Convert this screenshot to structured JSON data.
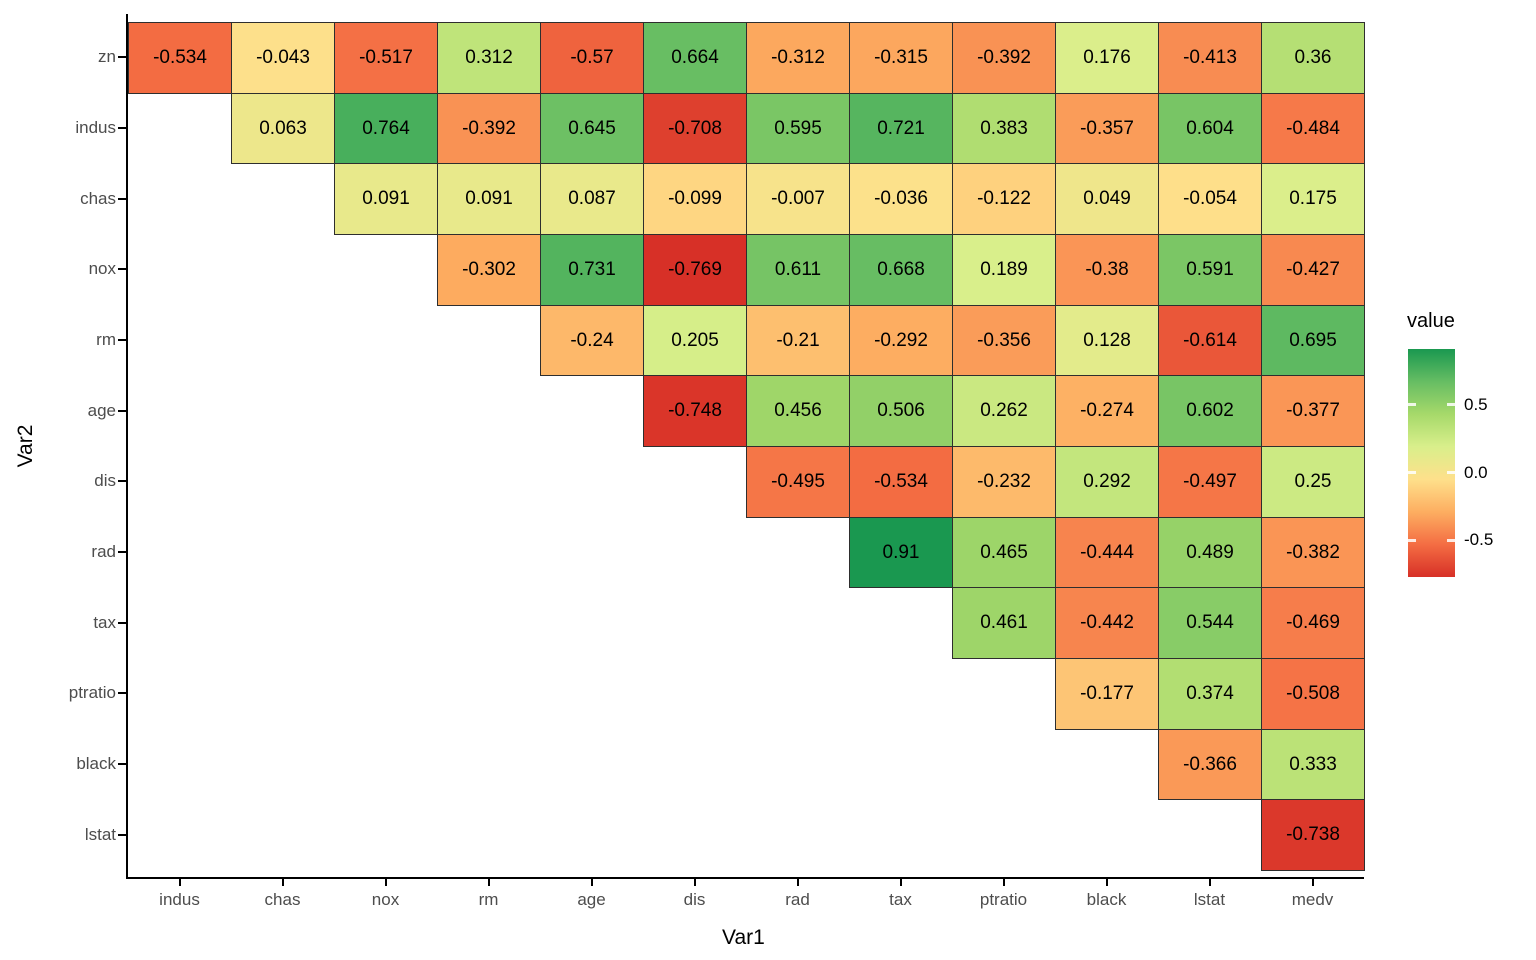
{
  "chart_data": {
    "type": "heatmap",
    "title": "",
    "xlabel": "Var1",
    "ylabel": "Var2",
    "x_categories": [
      "indus",
      "chas",
      "nox",
      "rm",
      "age",
      "dis",
      "rad",
      "tax",
      "ptratio",
      "black",
      "lstat",
      "medv"
    ],
    "y_categories": [
      "zn",
      "indus",
      "chas",
      "nox",
      "rm",
      "age",
      "dis",
      "rad",
      "tax",
      "ptratio",
      "black",
      "lstat"
    ],
    "rows": [
      {
        "y": "zn",
        "cells": [
          {
            "x": "indus",
            "v": -0.534
          },
          {
            "x": "chas",
            "v": -0.043
          },
          {
            "x": "nox",
            "v": -0.517
          },
          {
            "x": "rm",
            "v": 0.312
          },
          {
            "x": "age",
            "v": -0.57
          },
          {
            "x": "dis",
            "v": 0.664
          },
          {
            "x": "rad",
            "v": -0.312
          },
          {
            "x": "tax",
            "v": -0.315
          },
          {
            "x": "ptratio",
            "v": -0.392
          },
          {
            "x": "black",
            "v": 0.176
          },
          {
            "x": "lstat",
            "v": -0.413
          },
          {
            "x": "medv",
            "v": 0.36
          }
        ]
      },
      {
        "y": "indus",
        "cells": [
          {
            "x": "chas",
            "v": 0.063
          },
          {
            "x": "nox",
            "v": 0.764
          },
          {
            "x": "rm",
            "v": -0.392
          },
          {
            "x": "age",
            "v": 0.645
          },
          {
            "x": "dis",
            "v": -0.708
          },
          {
            "x": "rad",
            "v": 0.595
          },
          {
            "x": "tax",
            "v": 0.721
          },
          {
            "x": "ptratio",
            "v": 0.383
          },
          {
            "x": "black",
            "v": -0.357
          },
          {
            "x": "lstat",
            "v": 0.604
          },
          {
            "x": "medv",
            "v": -0.484
          }
        ]
      },
      {
        "y": "chas",
        "cells": [
          {
            "x": "nox",
            "v": 0.091
          },
          {
            "x": "rm",
            "v": 0.091
          },
          {
            "x": "age",
            "v": 0.087
          },
          {
            "x": "dis",
            "v": -0.099
          },
          {
            "x": "rad",
            "v": -0.007
          },
          {
            "x": "tax",
            "v": -0.036
          },
          {
            "x": "ptratio",
            "v": -0.122
          },
          {
            "x": "black",
            "v": 0.049
          },
          {
            "x": "lstat",
            "v": -0.054
          },
          {
            "x": "medv",
            "v": 0.175
          }
        ]
      },
      {
        "y": "nox",
        "cells": [
          {
            "x": "rm",
            "v": -0.302
          },
          {
            "x": "age",
            "v": 0.731
          },
          {
            "x": "dis",
            "v": -0.769
          },
          {
            "x": "rad",
            "v": 0.611
          },
          {
            "x": "tax",
            "v": 0.668
          },
          {
            "x": "ptratio",
            "v": 0.189
          },
          {
            "x": "black",
            "v": -0.38
          },
          {
            "x": "lstat",
            "v": 0.591
          },
          {
            "x": "medv",
            "v": -0.427
          }
        ]
      },
      {
        "y": "rm",
        "cells": [
          {
            "x": "age",
            "v": -0.24
          },
          {
            "x": "dis",
            "v": 0.205
          },
          {
            "x": "rad",
            "v": -0.21
          },
          {
            "x": "tax",
            "v": -0.292
          },
          {
            "x": "ptratio",
            "v": -0.356
          },
          {
            "x": "black",
            "v": 0.128
          },
          {
            "x": "lstat",
            "v": -0.614
          },
          {
            "x": "medv",
            "v": 0.695
          }
        ]
      },
      {
        "y": "age",
        "cells": [
          {
            "x": "dis",
            "v": -0.748
          },
          {
            "x": "rad",
            "v": 0.456
          },
          {
            "x": "tax",
            "v": 0.506
          },
          {
            "x": "ptratio",
            "v": 0.262
          },
          {
            "x": "black",
            "v": -0.274
          },
          {
            "x": "lstat",
            "v": 0.602
          },
          {
            "x": "medv",
            "v": -0.377
          }
        ]
      },
      {
        "y": "dis",
        "cells": [
          {
            "x": "rad",
            "v": -0.495
          },
          {
            "x": "tax",
            "v": -0.534
          },
          {
            "x": "ptratio",
            "v": -0.232
          },
          {
            "x": "black",
            "v": 0.292
          },
          {
            "x": "lstat",
            "v": -0.497
          },
          {
            "x": "medv",
            "v": 0.25
          }
        ]
      },
      {
        "y": "rad",
        "cells": [
          {
            "x": "tax",
            "v": 0.91
          },
          {
            "x": "ptratio",
            "v": 0.465
          },
          {
            "x": "black",
            "v": -0.444
          },
          {
            "x": "lstat",
            "v": 0.489
          },
          {
            "x": "medv",
            "v": -0.382
          }
        ]
      },
      {
        "y": "tax",
        "cells": [
          {
            "x": "ptratio",
            "v": 0.461
          },
          {
            "x": "black",
            "v": -0.442
          },
          {
            "x": "lstat",
            "v": 0.544
          },
          {
            "x": "medv",
            "v": -0.469
          }
        ]
      },
      {
        "y": "ptratio",
        "cells": [
          {
            "x": "black",
            "v": -0.177
          },
          {
            "x": "lstat",
            "v": 0.374
          },
          {
            "x": "medv",
            "v": -0.508
          }
        ]
      },
      {
        "y": "black",
        "cells": [
          {
            "x": "lstat",
            "v": -0.366
          },
          {
            "x": "medv",
            "v": 0.333
          }
        ]
      },
      {
        "y": "lstat",
        "cells": [
          {
            "x": "medv",
            "v": -0.738
          }
        ]
      }
    ],
    "legend": {
      "title": "value",
      "ticks": [
        {
          "v": 0.5,
          "label": "0.5"
        },
        {
          "v": 0.0,
          "label": "0.0"
        },
        {
          "v": -0.5,
          "label": "-0.5"
        }
      ]
    },
    "color_scale": {
      "palette": [
        "#d73027",
        "#f46d43",
        "#fdae61",
        "#fee08b",
        "#d9ef8b",
        "#a6d96a",
        "#66bd63",
        "#1a9850"
      ],
      "domain": [
        -0.769,
        0.91
      ]
    },
    "colors": {
      "axis_text": "#4d4d4d",
      "axis_title": "#000000",
      "cell_border": "#2e2e2e",
      "cell_text": "#000000",
      "background": "#ffffff"
    },
    "grid": false,
    "legend_position": "right"
  }
}
